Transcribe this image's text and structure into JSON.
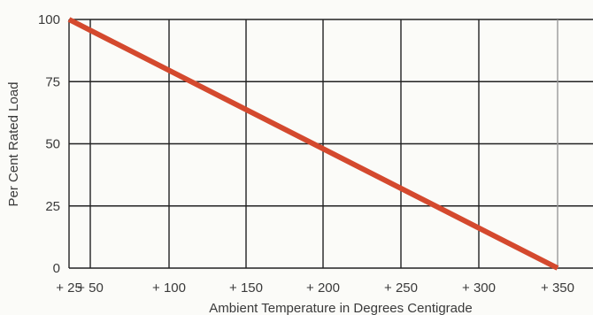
{
  "chart_data": {
    "type": "line",
    "title": "",
    "xlabel": "Ambient Temperature in Degrees Centigrade",
    "ylabel": "Per Cent Rated Load",
    "xlim": [
      25,
      350
    ],
    "ylim": [
      0,
      100
    ],
    "x_ticks": [
      25,
      50,
      100,
      150,
      200,
      250,
      300,
      350
    ],
    "x_tick_labels": [
      "+ 25",
      "+ 50",
      "+ 100",
      "+ 150",
      "+ 200",
      "+ 250",
      "+ 300",
      "+ 350"
    ],
    "y_ticks": [
      0,
      25,
      50,
      75,
      100
    ],
    "y_tick_labels": [
      "0",
      "25",
      "50",
      "75",
      "100"
    ],
    "grid": true,
    "series": [
      {
        "x": [
          25,
          350
        ],
        "y": [
          100,
          0
        ],
        "color": "#d4492e"
      }
    ]
  }
}
